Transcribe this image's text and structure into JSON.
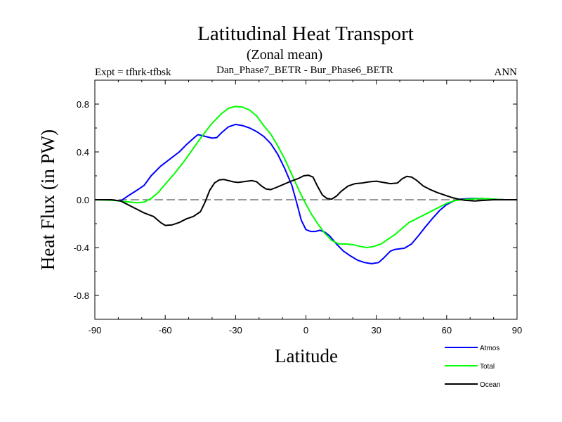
{
  "chart_data": {
    "type": "line",
    "title": "Latitudinal Heat Transport",
    "subtitle": "(Zonal mean)",
    "left_label": "Expt = tfhrk-tfbsk",
    "center_label": "Dan_Phase7_BETR - Bur_Phase6_BETR",
    "right_label": "ANN",
    "xlabel": "Latitude",
    "ylabel": "Heat Flux (in PW)",
    "xlim": [
      -90,
      90
    ],
    "ylim": [
      -1.0,
      1.0
    ],
    "xticks": [
      -90,
      -60,
      -30,
      0,
      30,
      60,
      90
    ],
    "xtick_labels": [
      "-90",
      "-60",
      "-30",
      "0",
      "30",
      "60",
      "90"
    ],
    "yticks": [
      -0.8,
      -0.4,
      0.0,
      0.4,
      0.8
    ],
    "ytick_labels": [
      "-0.8",
      "-0.4",
      "0.0",
      "0.4",
      "0.8"
    ],
    "zero_line": true,
    "series": [
      {
        "name": "Atmos",
        "color": "#0000ff",
        "points": [
          [
            -90,
            0
          ],
          [
            -84,
            0
          ],
          [
            -79,
            -0.01
          ],
          [
            -76,
            0.03
          ],
          [
            -72,
            0.08
          ],
          [
            -69,
            0.12
          ],
          [
            -66,
            0.2
          ],
          [
            -62,
            0.28
          ],
          [
            -58,
            0.34
          ],
          [
            -54,
            0.4
          ],
          [
            -51,
            0.46
          ],
          [
            -47,
            0.53
          ],
          [
            -46,
            0.545
          ],
          [
            -43,
            0.53
          ],
          [
            -40,
            0.515
          ],
          [
            -38,
            0.52
          ],
          [
            -36,
            0.56
          ],
          [
            -33,
            0.61
          ],
          [
            -30,
            0.63
          ],
          [
            -27,
            0.62
          ],
          [
            -24,
            0.6
          ],
          [
            -21,
            0.57
          ],
          [
            -18,
            0.53
          ],
          [
            -15,
            0.47
          ],
          [
            -12,
            0.38
          ],
          [
            -9,
            0.26
          ],
          [
            -6,
            0.12
          ],
          [
            -4,
            -0.02
          ],
          [
            -2,
            -0.17
          ],
          [
            0,
            -0.25
          ],
          [
            2,
            -0.265
          ],
          [
            4,
            -0.265
          ],
          [
            6,
            -0.255
          ],
          [
            8,
            -0.27
          ],
          [
            10,
            -0.3
          ],
          [
            13,
            -0.37
          ],
          [
            16,
            -0.43
          ],
          [
            19,
            -0.47
          ],
          [
            22,
            -0.505
          ],
          [
            25,
            -0.525
          ],
          [
            28,
            -0.535
          ],
          [
            31,
            -0.525
          ],
          [
            33,
            -0.49
          ],
          [
            36,
            -0.43
          ],
          [
            38,
            -0.415
          ],
          [
            42,
            -0.405
          ],
          [
            45,
            -0.37
          ],
          [
            48,
            -0.3
          ],
          [
            51,
            -0.225
          ],
          [
            54,
            -0.155
          ],
          [
            57,
            -0.09
          ],
          [
            60,
            -0.04
          ],
          [
            63,
            -0.01
          ],
          [
            66,
            0.005
          ],
          [
            70,
            0.01
          ],
          [
            75,
            0.01
          ],
          [
            80,
            0.005
          ],
          [
            85,
            0
          ],
          [
            90,
            0
          ]
        ]
      },
      {
        "name": "Total",
        "color": "#00ff00",
        "points": [
          [
            -90,
            0
          ],
          [
            -82,
            -0.005
          ],
          [
            -77,
            -0.015
          ],
          [
            -72,
            -0.025
          ],
          [
            -69,
            -0.02
          ],
          [
            -66,
            0.01
          ],
          [
            -63,
            0.06
          ],
          [
            -60,
            0.13
          ],
          [
            -56,
            0.22
          ],
          [
            -52,
            0.32
          ],
          [
            -48,
            0.43
          ],
          [
            -44,
            0.54
          ],
          [
            -40,
            0.64
          ],
          [
            -36,
            0.72
          ],
          [
            -33,
            0.765
          ],
          [
            -30,
            0.78
          ],
          [
            -27,
            0.775
          ],
          [
            -24,
            0.75
          ],
          [
            -21,
            0.7
          ],
          [
            -18,
            0.62
          ],
          [
            -15,
            0.55
          ],
          [
            -12,
            0.45
          ],
          [
            -9,
            0.34
          ],
          [
            -6,
            0.21
          ],
          [
            -3,
            0.08
          ],
          [
            -1,
            0
          ],
          [
            2,
            -0.11
          ],
          [
            5,
            -0.2
          ],
          [
            8,
            -0.28
          ],
          [
            11,
            -0.34
          ],
          [
            14,
            -0.37
          ],
          [
            17,
            -0.37
          ],
          [
            20,
            -0.375
          ],
          [
            23,
            -0.39
          ],
          [
            26,
            -0.4
          ],
          [
            29,
            -0.39
          ],
          [
            32,
            -0.37
          ],
          [
            35,
            -0.33
          ],
          [
            38,
            -0.29
          ],
          [
            41,
            -0.24
          ],
          [
            44,
            -0.19
          ],
          [
            48,
            -0.15
          ],
          [
            52,
            -0.11
          ],
          [
            56,
            -0.07
          ],
          [
            60,
            -0.03
          ],
          [
            63,
            -0.01
          ],
          [
            66,
            0
          ],
          [
            70,
            0.005
          ],
          [
            75,
            0.01
          ],
          [
            80,
            0.005
          ],
          [
            85,
            0
          ],
          [
            90,
            0
          ]
        ]
      },
      {
        "name": "Ocean",
        "color": "#000000",
        "points": [
          [
            -90,
            0
          ],
          [
            -83,
            0
          ],
          [
            -79,
            -0.01
          ],
          [
            -76,
            -0.04
          ],
          [
            -72,
            -0.08
          ],
          [
            -69,
            -0.11
          ],
          [
            -65,
            -0.14
          ],
          [
            -62,
            -0.19
          ],
          [
            -60,
            -0.215
          ],
          [
            -57,
            -0.21
          ],
          [
            -54,
            -0.19
          ],
          [
            -51,
            -0.16
          ],
          [
            -48,
            -0.14
          ],
          [
            -45,
            -0.1
          ],
          [
            -43,
            -0.02
          ],
          [
            -41,
            0.08
          ],
          [
            -39,
            0.14
          ],
          [
            -37,
            0.165
          ],
          [
            -35,
            0.17
          ],
          [
            -33,
            0.16
          ],
          [
            -31,
            0.15
          ],
          [
            -29,
            0.145
          ],
          [
            -27,
            0.15
          ],
          [
            -25,
            0.155
          ],
          [
            -23,
            0.16
          ],
          [
            -21,
            0.15
          ],
          [
            -19,
            0.115
          ],
          [
            -17,
            0.09
          ],
          [
            -15,
            0.085
          ],
          [
            -13,
            0.1
          ],
          [
            -10,
            0.125
          ],
          [
            -7,
            0.15
          ],
          [
            -5,
            0.165
          ],
          [
            -3,
            0.18
          ],
          [
            -1,
            0.2
          ],
          [
            1,
            0.205
          ],
          [
            3,
            0.19
          ],
          [
            5,
            0.11
          ],
          [
            7,
            0.04
          ],
          [
            9,
            0.01
          ],
          [
            11,
            0.005
          ],
          [
            13,
            0.03
          ],
          [
            15,
            0.07
          ],
          [
            18,
            0.115
          ],
          [
            21,
            0.135
          ],
          [
            24,
            0.14
          ],
          [
            27,
            0.15
          ],
          [
            30,
            0.155
          ],
          [
            33,
            0.145
          ],
          [
            36,
            0.135
          ],
          [
            39,
            0.14
          ],
          [
            41,
            0.175
          ],
          [
            43,
            0.195
          ],
          [
            45,
            0.19
          ],
          [
            47,
            0.165
          ],
          [
            50,
            0.115
          ],
          [
            53,
            0.085
          ],
          [
            56,
            0.06
          ],
          [
            59,
            0.04
          ],
          [
            62,
            0.02
          ],
          [
            65,
            0.005
          ],
          [
            68,
            -0.005
          ],
          [
            72,
            -0.01
          ],
          [
            76,
            -0.005
          ],
          [
            80,
            0
          ],
          [
            85,
            0
          ],
          [
            90,
            0
          ]
        ]
      }
    ],
    "legend": {
      "placement": "bottom-right",
      "entries": [
        "Atmos",
        "Total",
        "Ocean"
      ]
    }
  }
}
